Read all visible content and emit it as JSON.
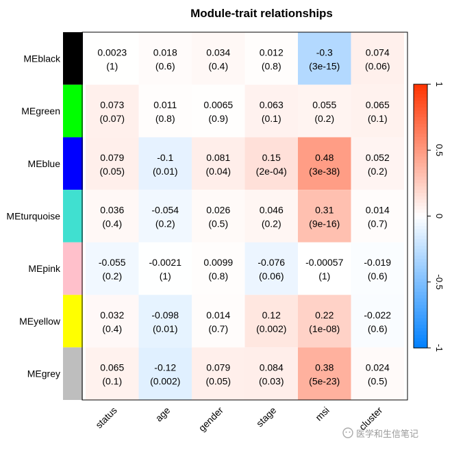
{
  "chart_data": {
    "type": "heatmap",
    "title": "Module-trait relationships",
    "rows": [
      {
        "label": "MEblack",
        "color": "#000000"
      },
      {
        "label": "MEgreen",
        "color": "#00ff00"
      },
      {
        "label": "MEblue",
        "color": "#0000ff"
      },
      {
        "label": "MEturquoise",
        "color": "#40e0d0"
      },
      {
        "label": "MEpink",
        "color": "#ffc0cb"
      },
      {
        "label": "MEyellow",
        "color": "#ffff00"
      },
      {
        "label": "MEgrey",
        "color": "#bebebe"
      }
    ],
    "columns": [
      "status",
      "age",
      "gender",
      "stage",
      "msi",
      "cluster"
    ],
    "values": [
      [
        0.0023,
        0.018,
        0.034,
        0.012,
        -0.3,
        0.074
      ],
      [
        0.073,
        0.011,
        0.0065,
        0.063,
        0.055,
        0.065
      ],
      [
        0.079,
        -0.1,
        0.081,
        0.15,
        0.48,
        0.052
      ],
      [
        0.036,
        -0.054,
        0.026,
        0.046,
        0.31,
        0.014
      ],
      [
        -0.055,
        -0.0021,
        0.0099,
        -0.076,
        -0.00057,
        -0.019
      ],
      [
        0.032,
        -0.098,
        0.014,
        0.12,
        0.22,
        -0.022
      ],
      [
        0.065,
        -0.12,
        0.079,
        0.084,
        0.38,
        0.024
      ]
    ],
    "value_labels": [
      [
        "0.0023",
        "0.018",
        "0.034",
        "0.012",
        "-0.3",
        "0.074"
      ],
      [
        "0.073",
        "0.011",
        "0.0065",
        "0.063",
        "0.055",
        "0.065"
      ],
      [
        "0.079",
        "-0.1",
        "0.081",
        "0.15",
        "0.48",
        "0.052"
      ],
      [
        "0.036",
        "-0.054",
        "0.026",
        "0.046",
        "0.31",
        "0.014"
      ],
      [
        "-0.055",
        "-0.0021",
        "0.0099",
        "-0.076",
        "-0.00057",
        "-0.019"
      ],
      [
        "0.032",
        "-0.098",
        "0.014",
        "0.12",
        "0.22",
        "-0.022"
      ],
      [
        "0.065",
        "-0.12",
        "0.079",
        "0.084",
        "0.38",
        "0.024"
      ]
    ],
    "pvalue_labels": [
      [
        "(1)",
        "(0.6)",
        "(0.4)",
        "(0.8)",
        "(3e-15)",
        "(0.06)"
      ],
      [
        "(0.07)",
        "(0.8)",
        "(0.9)",
        "(0.1)",
        "(0.2)",
        "(0.1)"
      ],
      [
        "(0.05)",
        "(0.01)",
        "(0.04)",
        "(2e-04)",
        "(3e-38)",
        "(0.2)"
      ],
      [
        "(0.4)",
        "(0.2)",
        "(0.5)",
        "(0.2)",
        "(9e-16)",
        "(0.7)"
      ],
      [
        "(0.2)",
        "(1)",
        "(0.8)",
        "(0.06)",
        "(1)",
        "(0.6)"
      ],
      [
        "(0.4)",
        "(0.01)",
        "(0.7)",
        "(0.002)",
        "(1e-08)",
        "(0.6)"
      ],
      [
        "(0.1)",
        "(0.002)",
        "(0.05)",
        "(0.03)",
        "(5e-23)",
        "(0.5)"
      ]
    ],
    "color_scale": {
      "min": -1,
      "max": 1,
      "low_color": "#0080ff",
      "mid_color": "#ffffff",
      "high_color": "#ff3300",
      "ticks": [
        "-1",
        "-0.5",
        "0",
        "0.5",
        "1"
      ]
    },
    "legend_position": "right"
  },
  "watermark": {
    "text": "医学和生信笔记"
  }
}
